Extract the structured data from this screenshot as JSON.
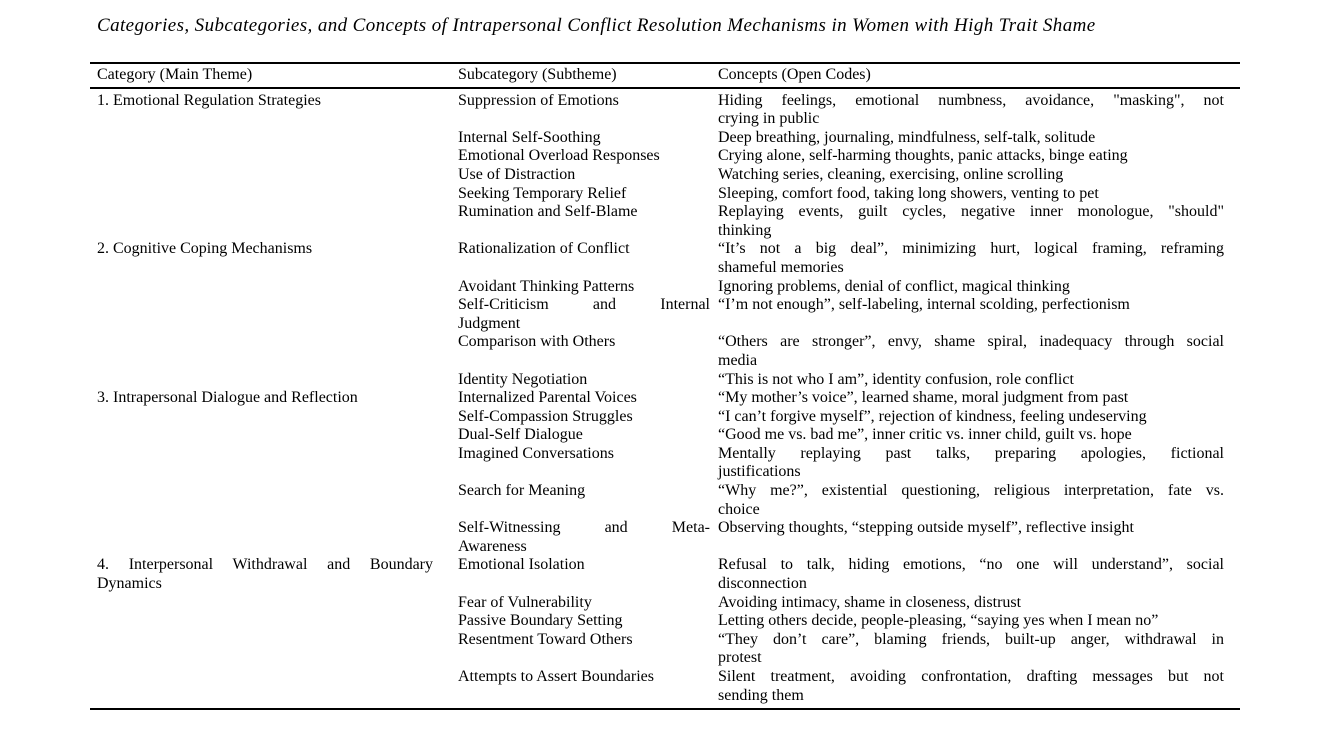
{
  "title": "Categories, Subcategories, and Concepts of Intrapersonal Conflict Resolution Mechanisms in Women with High Trait Shame",
  "table": {
    "headers": [
      "Category (Main Theme)",
      "Subcategory (Subtheme)",
      "Concepts (Open Codes)"
    ],
    "groups": [
      {
        "category_lines": [
          "1. Emotional Regulation Strategies"
        ],
        "rows": [
          {
            "subcategory_lines": [
              "Suppression of Emotions"
            ],
            "concept_lines": [
              "Hiding feelings, emotional numbness, avoidance, \"masking\", not",
              "crying in public"
            ]
          },
          {
            "subcategory_lines": [
              "Internal Self-Soothing"
            ],
            "concept_lines": [
              "Deep breathing, journaling, mindfulness, self-talk, solitude"
            ]
          },
          {
            "subcategory_lines": [
              "Emotional Overload Responses"
            ],
            "concept_lines": [
              "Crying alone, self-harming thoughts, panic attacks, binge eating"
            ]
          },
          {
            "subcategory_lines": [
              "Use of Distraction"
            ],
            "concept_lines": [
              "Watching series, cleaning, exercising, online scrolling"
            ]
          },
          {
            "subcategory_lines": [
              "Seeking Temporary Relief"
            ],
            "concept_lines": [
              "Sleeping, comfort food, taking long showers, venting to pet"
            ]
          },
          {
            "subcategory_lines": [
              "Rumination and Self-Blame"
            ],
            "concept_lines": [
              "Replaying events, guilt cycles, negative inner monologue, \"should\"",
              "thinking"
            ]
          }
        ]
      },
      {
        "category_lines": [
          "2. Cognitive Coping Mechanisms"
        ],
        "rows": [
          {
            "subcategory_lines": [
              "Rationalization of Conflict"
            ],
            "concept_lines": [
              "“It’s not a big deal”, minimizing hurt, logical framing, reframing",
              "shameful memories"
            ]
          },
          {
            "subcategory_lines": [
              "Avoidant Thinking Patterns"
            ],
            "concept_lines": [
              "Ignoring problems, denial of conflict, magical thinking"
            ]
          },
          {
            "subcategory_lines": [
              "Self-Criticism and Internal",
              "Judgment"
            ],
            "concept_lines": [
              "“I’m not enough”, self-labeling, internal scolding, perfectionism"
            ]
          },
          {
            "subcategory_lines": [
              "Comparison with Others"
            ],
            "concept_lines": [
              "“Others are stronger”, envy, shame spiral, inadequacy through social",
              "media"
            ]
          },
          {
            "subcategory_lines": [
              "Identity Negotiation"
            ],
            "concept_lines": [
              "“This is not who I am”, identity confusion, role conflict"
            ]
          }
        ]
      },
      {
        "category_lines": [
          "3. Intrapersonal Dialogue and Reflection"
        ],
        "rows": [
          {
            "subcategory_lines": [
              "Internalized Parental Voices"
            ],
            "concept_lines": [
              "“My mother’s voice”, learned shame, moral judgment from past"
            ]
          },
          {
            "subcategory_lines": [
              "Self-Compassion Struggles"
            ],
            "concept_lines": [
              "“I can’t forgive myself”, rejection of kindness, feeling undeserving"
            ]
          },
          {
            "subcategory_lines": [
              "Dual-Self Dialogue"
            ],
            "concept_lines": [
              "“Good me vs. bad me”, inner critic vs. inner child, guilt vs. hope"
            ]
          },
          {
            "subcategory_lines": [
              "Imagined Conversations"
            ],
            "concept_lines": [
              "Mentally replaying past talks, preparing apologies, fictional",
              "justifications"
            ]
          },
          {
            "subcategory_lines": [
              "Search for Meaning"
            ],
            "concept_lines": [
              "“Why me?”, existential questioning, religious interpretation, fate vs.",
              "choice"
            ]
          },
          {
            "subcategory_lines": [
              "Self-Witnessing and Meta-",
              "Awareness"
            ],
            "concept_lines": [
              "Observing thoughts, “stepping outside myself”, reflective insight"
            ]
          }
        ]
      },
      {
        "category_lines": [
          "4. Interpersonal Withdrawal and Boundary",
          "Dynamics"
        ],
        "rows": [
          {
            "subcategory_lines": [
              "Emotional Isolation"
            ],
            "concept_lines": [
              "Refusal to talk, hiding emotions, “no one will understand”, social",
              "disconnection"
            ]
          },
          {
            "subcategory_lines": [
              "Fear of Vulnerability"
            ],
            "concept_lines": [
              "Avoiding intimacy, shame in closeness, distrust"
            ]
          },
          {
            "subcategory_lines": [
              "Passive Boundary Setting"
            ],
            "concept_lines": [
              "Letting others decide, people-pleasing, “saying yes when I mean no”"
            ]
          },
          {
            "subcategory_lines": [
              "Resentment Toward Others"
            ],
            "concept_lines": [
              "“They don’t care”, blaming friends, built-up anger, withdrawal in",
              "protest"
            ]
          },
          {
            "subcategory_lines": [
              "Attempts to Assert Boundaries"
            ],
            "concept_lines": [
              "Silent treatment, avoiding confrontation, drafting messages but not",
              "sending them"
            ]
          }
        ]
      }
    ]
  },
  "colors": {
    "text": "#000000",
    "rule": "#000000",
    "background": "#ffffff"
  }
}
